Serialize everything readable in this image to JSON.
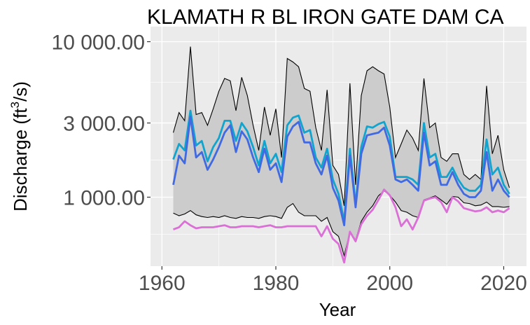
{
  "chart_data": {
    "type": "line",
    "title": "KLAMATH R BL IRON GATE DAM CA",
    "xlabel": "Year",
    "ylabel": "Discharge (ft³/s)",
    "ylabel_parts": {
      "pre": "Discharge (ft",
      "sup": "3",
      "post": "/s)"
    },
    "x_scale": "linear",
    "y_scale": "log10",
    "xlim": [
      1958,
      2024
    ],
    "ylim": [
      360,
      12500
    ],
    "x_ticks": [
      1960,
      1980,
      2000,
      2020
    ],
    "x_tick_labels": [
      "1960",
      "1980",
      "2000",
      "2020"
    ],
    "y_ticks": [
      1000,
      3000,
      10000
    ],
    "y_tick_labels": [
      "1 000.00",
      "3 000.00",
      "10 000.00"
    ],
    "grid": true,
    "legend": "none",
    "x": [
      1962,
      1963,
      1964,
      1965,
      1966,
      1967,
      1968,
      1969,
      1970,
      1971,
      1972,
      1973,
      1974,
      1975,
      1976,
      1977,
      1978,
      1979,
      1980,
      1981,
      1982,
      1983,
      1984,
      1985,
      1986,
      1987,
      1988,
      1989,
      1990,
      1991,
      1992,
      1993,
      1994,
      1995,
      1996,
      1997,
      1998,
      1999,
      2000,
      2001,
      2002,
      2003,
      2004,
      2005,
      2006,
      2007,
      2008,
      2009,
      2010,
      2011,
      2012,
      2013,
      2014,
      2015,
      2016,
      2017,
      2018,
      2019,
      2020,
      2021
    ],
    "ribbon": {
      "color": "#cccccc",
      "outline": "#000000",
      "upper": [
        2600,
        3500,
        3100,
        9300,
        3400,
        3500,
        2900,
        3700,
        4800,
        5800,
        5600,
        3600,
        5900,
        4500,
        2900,
        2000,
        3800,
        2500,
        3700,
        1800,
        7800,
        7400,
        6900,
        5000,
        4800,
        2800,
        2000,
        4900,
        1600,
        1400,
        880,
        5400,
        1200,
        4500,
        6500,
        6900,
        6500,
        6200,
        3800,
        1800,
        2200,
        2700,
        2400,
        2000,
        5800,
        2800,
        3000,
        1800,
        1700,
        1900,
        1900,
        1400,
        1300,
        1400,
        1300,
        5200,
        1900,
        2500,
        1500,
        1150
      ],
      "lower": [
        790,
        760,
        780,
        820,
        770,
        750,
        740,
        750,
        740,
        760,
        740,
        730,
        750,
        740,
        740,
        730,
        750,
        760,
        750,
        730,
        860,
        910,
        800,
        760,
        760,
        760,
        700,
        740,
        600,
        560,
        420,
        600,
        530,
        700,
        800,
        880,
        1020,
        1100,
        1030,
        930,
        820,
        800,
        760,
        740,
        960,
        990,
        1020,
        960,
        900,
        1010,
        1000,
        920,
        910,
        880,
        890,
        930,
        870,
        870,
        860,
        870
      ]
    },
    "series": [
      {
        "color": "#12a4cd",
        "values": [
          1750,
          2200,
          2000,
          3600,
          2150,
          2300,
          1700,
          2100,
          2400,
          3100,
          3100,
          2300,
          3000,
          2650,
          2100,
          1600,
          2300,
          1650,
          1900,
          1450,
          2900,
          3250,
          3350,
          2600,
          2700,
          1800,
          1550,
          2050,
          1300,
          1050,
          700,
          2050,
          900,
          2100,
          2850,
          2800,
          2950,
          3050,
          2450,
          1350,
          1350,
          1350,
          1300,
          1200,
          3000,
          1800,
          1900,
          1350,
          1350,
          1550,
          1300,
          1150,
          1100,
          1100,
          1200,
          2350,
          1400,
          1550,
          1200,
          1050
        ]
      },
      {
        "color": "#4169e1",
        "values": [
          1200,
          1850,
          1650,
          3300,
          1800,
          1950,
          1500,
          1750,
          2100,
          2600,
          2900,
          1950,
          2650,
          2350,
          1800,
          1450,
          2050,
          1500,
          1650,
          1250,
          2450,
          2850,
          3050,
          2250,
          2250,
          1650,
          1400,
          1850,
          1150,
          950,
          660,
          1850,
          860,
          1900,
          2500,
          2550,
          2600,
          2800,
          2150,
          1300,
          1250,
          1300,
          1200,
          1100,
          2600,
          1600,
          1700,
          1200,
          1200,
          1450,
          1200,
          1050,
          1000,
          1000,
          1100,
          1950,
          1100,
          1300,
          1100,
          1000
        ]
      },
      {
        "color": "#da70d6",
        "values": [
          620,
          640,
          700,
          660,
          630,
          640,
          640,
          640,
          650,
          660,
          640,
          640,
          650,
          650,
          650,
          640,
          650,
          660,
          640,
          640,
          650,
          650,
          650,
          650,
          650,
          650,
          560,
          650,
          540,
          500,
          380,
          600,
          520,
          670,
          760,
          830,
          960,
          1120,
          1030,
          860,
          650,
          720,
          620,
          740,
          950,
          980,
          1000,
          930,
          800,
          1000,
          940,
          850,
          830,
          810,
          820,
          860,
          800,
          820,
          800,
          850
        ]
      }
    ]
  }
}
